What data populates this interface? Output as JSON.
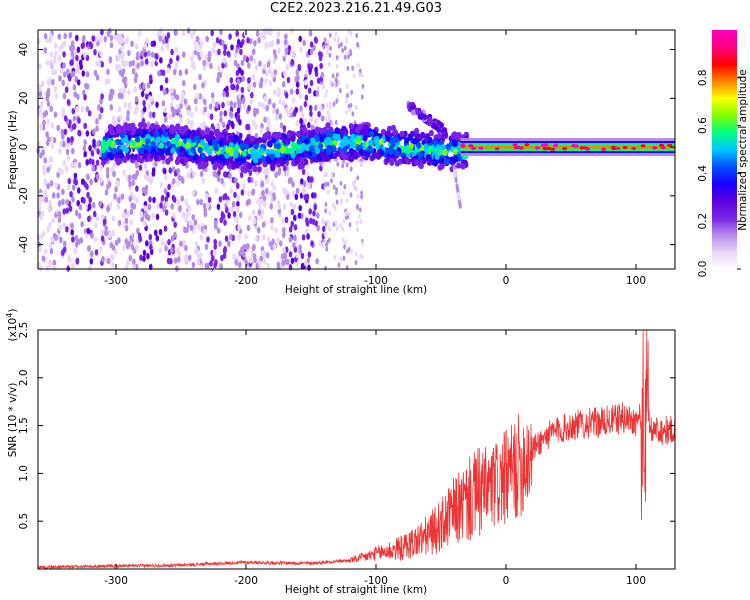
{
  "title": "C2E2.2023.216.21.49.G03",
  "chart_data": [
    {
      "type": "heatmap",
      "name": "spectrogram",
      "xlabel": "Height of straight line (km)",
      "ylabel": "Frequency (Hz)",
      "xlim": [
        -360,
        130
      ],
      "ylim": [
        -50,
        48
      ],
      "xticks": [
        -300,
        -200,
        -100,
        0,
        100
      ],
      "yticks": [
        -40,
        -20,
        0,
        20,
        40
      ],
      "colorbar": {
        "label": "Normalized spectral amplitude",
        "range": [
          0,
          1
        ],
        "ticks": [
          0.0,
          0.2,
          0.4,
          0.6,
          0.8
        ],
        "colormap": [
          "#ffffff",
          "#ead6f7",
          "#b58be8",
          "#7a22e6",
          "#5b00e0",
          "#1a00ff",
          "#0050ff",
          "#00c8ff",
          "#00ff80",
          "#80ff00",
          "#ffff00",
          "#ff8000",
          "#ff0000",
          "#ff0080",
          "#ff00c0"
        ]
      },
      "features": {
        "noise_cloud_x": [
          -360,
          -140
        ],
        "sparse_noise_x": [
          -140,
          -110
        ],
        "central_band_x": [
          -310,
          -30
        ],
        "central_band_freq": 0,
        "branch": {
          "x": [
            -75,
            -45
          ],
          "freq": [
            17,
            6
          ]
        },
        "tail": {
          "x": [
            -40,
            -35
          ],
          "freq": [
            -8,
            -25
          ]
        },
        "steady_line": {
          "x": [
            -35,
            130
          ],
          "freq": 0
        }
      }
    },
    {
      "type": "line",
      "name": "snr",
      "xlabel": "Height of straight line (km)",
      "ylabel": "SNR (10 * v/v)",
      "y_multiplier_label": "(x10",
      "y_multiplier_exp": "4",
      "xlim": [
        -360,
        130
      ],
      "ylim": [
        0,
        2.5
      ],
      "xticks": [
        -300,
        -200,
        -100,
        0,
        100
      ],
      "yticks": [
        0.5,
        1.0,
        1.5,
        2.0,
        2.5
      ],
      "series": [
        {
          "color": "#ee3333",
          "x": [
            -360,
            -300,
            -250,
            -200,
            -150,
            -120,
            -110,
            -100,
            -80,
            -60,
            -50,
            -40,
            -30,
            -20,
            -10,
            0,
            10,
            20,
            30,
            40,
            50,
            60,
            70,
            80,
            90,
            100,
            105,
            108,
            110,
            115,
            120,
            130
          ],
          "y": [
            0.02,
            0.03,
            0.04,
            0.07,
            0.06,
            0.09,
            0.12,
            0.16,
            0.22,
            0.35,
            0.45,
            0.6,
            0.7,
            0.8,
            0.85,
            0.95,
            1.08,
            1.25,
            1.38,
            1.45,
            1.5,
            1.52,
            1.53,
            1.55,
            1.58,
            1.55,
            1.6,
            1.5,
            1.48,
            1.46,
            1.45,
            1.45
          ]
        }
      ]
    }
  ]
}
